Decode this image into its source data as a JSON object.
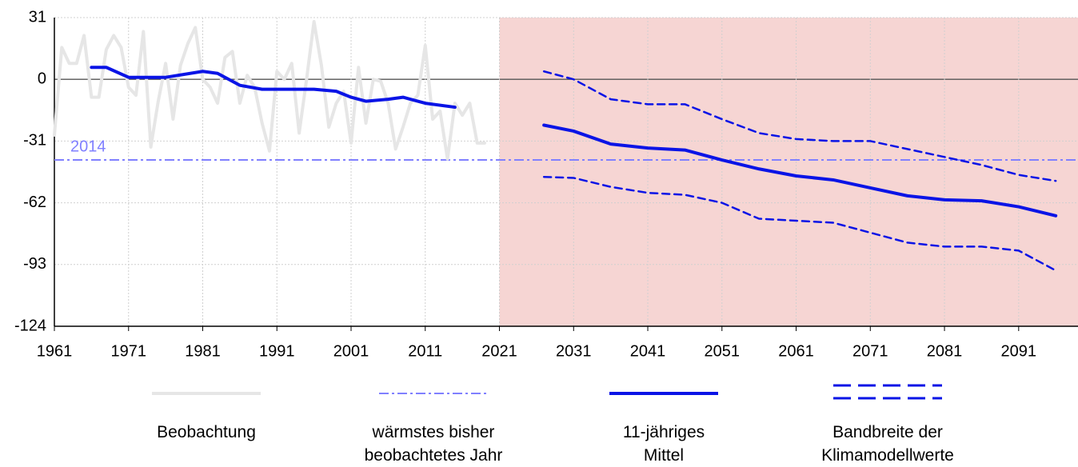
{
  "chart_data": {
    "type": "line",
    "xlim": [
      1961,
      2099
    ],
    "xticks": [
      1961,
      1971,
      1981,
      1991,
      2001,
      2011,
      2021,
      2031,
      2041,
      2051,
      2061,
      2071,
      2081,
      2091
    ],
    "ylim": [
      -124,
      31
    ],
    "yticks": [
      31,
      0,
      -31,
      -62,
      -93,
      -124
    ],
    "grid": true,
    "projection_start": 2021,
    "projection_color": "#f6d5d3",
    "series": [
      {
        "name": "Beobachtung",
        "color": "#e6e6e6",
        "style": "solid",
        "width": 4,
        "x": [
          1961,
          1962,
          1963,
          1964,
          1965,
          1966,
          1967,
          1968,
          1969,
          1970,
          1971,
          1972,
          1973,
          1974,
          1975,
          1976,
          1977,
          1978,
          1979,
          1980,
          1981,
          1982,
          1983,
          1984,
          1985,
          1986,
          1987,
          1988,
          1989,
          1990,
          1991,
          1992,
          1993,
          1994,
          1995,
          1996,
          1997,
          1998,
          1999,
          2000,
          2001,
          2002,
          2003,
          2004,
          2005,
          2006,
          2007,
          2008,
          2009,
          2010,
          2011,
          2012,
          2013,
          2014,
          2015,
          2016,
          2017,
          2018,
          2019
        ],
        "values": [
          -28,
          16,
          8,
          8,
          22,
          -9,
          -9,
          15,
          22,
          16,
          -4,
          -8,
          24,
          -34,
          -11,
          8,
          -20,
          7,
          18,
          26,
          0,
          -4,
          -12,
          11,
          14,
          -12,
          2,
          -4,
          -22,
          -36,
          4,
          0,
          8,
          -27,
          0,
          29,
          7,
          -24,
          -12,
          -6,
          -32,
          6,
          -22,
          0,
          -1,
          -12,
          -35,
          -24,
          -12,
          -8,
          17,
          -20,
          -16,
          -40,
          -12,
          -18,
          -12,
          -32,
          -32
        ]
      },
      {
        "name": "11-jähriges\nMittel",
        "color": "#0a14e6",
        "style": "solid",
        "width": 4,
        "x": [
          1966,
          1968,
          1971,
          1976,
          1981,
          1983,
          1986,
          1989,
          1991,
          1996,
          1999,
          2001,
          2003,
          2006,
          2008,
          2011,
          2015,
          2021,
          2027,
          2031,
          2036,
          2041,
          2046,
          2051,
          2056,
          2061,
          2066,
          2071,
          2076,
          2081,
          2086,
          2091,
          2096
        ],
        "values": [
          6,
          6,
          1,
          1,
          4,
          3,
          -3,
          -5,
          -5,
          -5,
          -6,
          -9,
          -11,
          -10,
          -9,
          -12,
          -14,
          null,
          -23,
          -26,
          -32.5,
          -34.5,
          -35.5,
          -40.5,
          -45,
          -48.5,
          -50.5,
          -54.5,
          -58.5,
          -60.5,
          -61,
          -64,
          -68.5
        ]
      },
      {
        "name": "Bandbreite der\nKlimamodellwerte",
        "color": "#0a14e6",
        "style": "dashed",
        "width": 2.5,
        "x": [
          2027,
          2031,
          2036,
          2041,
          2046,
          2051,
          2056,
          2061,
          2066,
          2071,
          2076,
          2081,
          2086,
          2091,
          2096
        ],
        "values": [
          4,
          0,
          -10,
          -12.5,
          -12.5,
          -20,
          -27,
          -30,
          -31,
          -31,
          -35,
          -39,
          -43,
          -48,
          -51
        ],
        "lower": [
          -49,
          -49.5,
          -54,
          -57,
          -58,
          -62,
          -70,
          -71,
          -72,
          -77,
          -82,
          -84,
          -84,
          -86,
          -96
        ]
      }
    ],
    "reference": {
      "name": "wärmstes bisher\nbeobachtetes Jahr",
      "label": "2014",
      "value": -40.5,
      "color": "#8080ff"
    }
  }
}
